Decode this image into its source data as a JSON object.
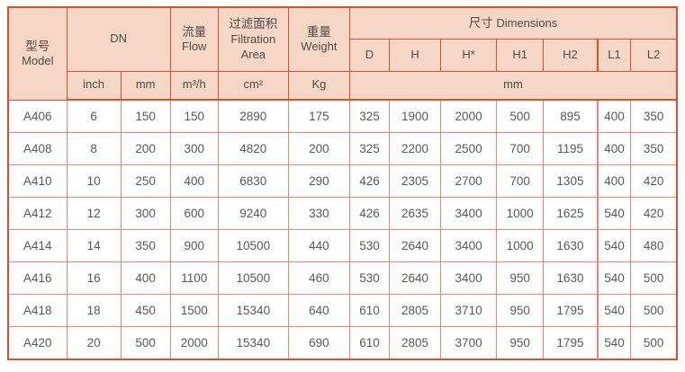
{
  "colors": {
    "header_bg": "#f6d7c6",
    "header_grid": "#d9502e",
    "data_grid": "#ec8478",
    "header_text": "#4f4b49",
    "data_text": "#595757"
  },
  "table": {
    "header": {
      "model": {
        "zh": "型号",
        "en": "Model"
      },
      "dn": "DN",
      "flow": {
        "zh": "流量",
        "en": "Flow"
      },
      "filtration_area": {
        "zh": "过滤面积",
        "en": "Filtration Area"
      },
      "weight": {
        "zh": "重量",
        "en": "Weight"
      },
      "dimensions": {
        "zh": "尺寸",
        "en": "Dimensions"
      },
      "dim_cols": [
        "D",
        "H",
        "H*",
        "H1",
        "H2",
        "L1",
        "L2"
      ],
      "units": {
        "inch": "inch",
        "mm": "mm",
        "flow": "m³/h",
        "area": "cm²",
        "weight": "Kg",
        "dims_mm": "mm"
      }
    },
    "rows": [
      {
        "model": "A406",
        "inch": "6",
        "mm": "150",
        "flow": "150",
        "area": "2890",
        "weight": "175",
        "dims": [
          "325",
          "1900",
          "2000",
          "500",
          "895",
          "400",
          "350"
        ]
      },
      {
        "model": "A408",
        "inch": "8",
        "mm": "200",
        "flow": "300",
        "area": "4820",
        "weight": "200",
        "dims": [
          "325",
          "2200",
          "2500",
          "700",
          "1195",
          "400",
          "350"
        ]
      },
      {
        "model": "A410",
        "inch": "10",
        "mm": "250",
        "flow": "400",
        "area": "6830",
        "weight": "290",
        "dims": [
          "426",
          "2305",
          "2700",
          "700",
          "1305",
          "400",
          "420"
        ]
      },
      {
        "model": "A412",
        "inch": "12",
        "mm": "300",
        "flow": "600",
        "area": "9240",
        "weight": "330",
        "dims": [
          "426",
          "2635",
          "3400",
          "1000",
          "1625",
          "540",
          "420"
        ]
      },
      {
        "model": "A414",
        "inch": "14",
        "mm": "350",
        "flow": "900",
        "area": "10500",
        "weight": "440",
        "dims": [
          "530",
          "2640",
          "3400",
          "1000",
          "1630",
          "540",
          "480"
        ]
      },
      {
        "model": "A416",
        "inch": "16",
        "mm": "400",
        "flow": "1100",
        "area": "10500",
        "weight": "460",
        "dims": [
          "530",
          "2640",
          "3400",
          "950",
          "1630",
          "540",
          "500"
        ]
      },
      {
        "model": "A418",
        "inch": "18",
        "mm": "450",
        "flow": "1500",
        "area": "15340",
        "weight": "640",
        "dims": [
          "610",
          "2805",
          "3710",
          "950",
          "1795",
          "540",
          "500"
        ]
      },
      {
        "model": "A420",
        "inch": "20",
        "mm": "500",
        "flow": "2000",
        "area": "15340",
        "weight": "690",
        "dims": [
          "610",
          "2805",
          "3700",
          "950",
          "1795",
          "540",
          "500"
        ]
      }
    ]
  }
}
